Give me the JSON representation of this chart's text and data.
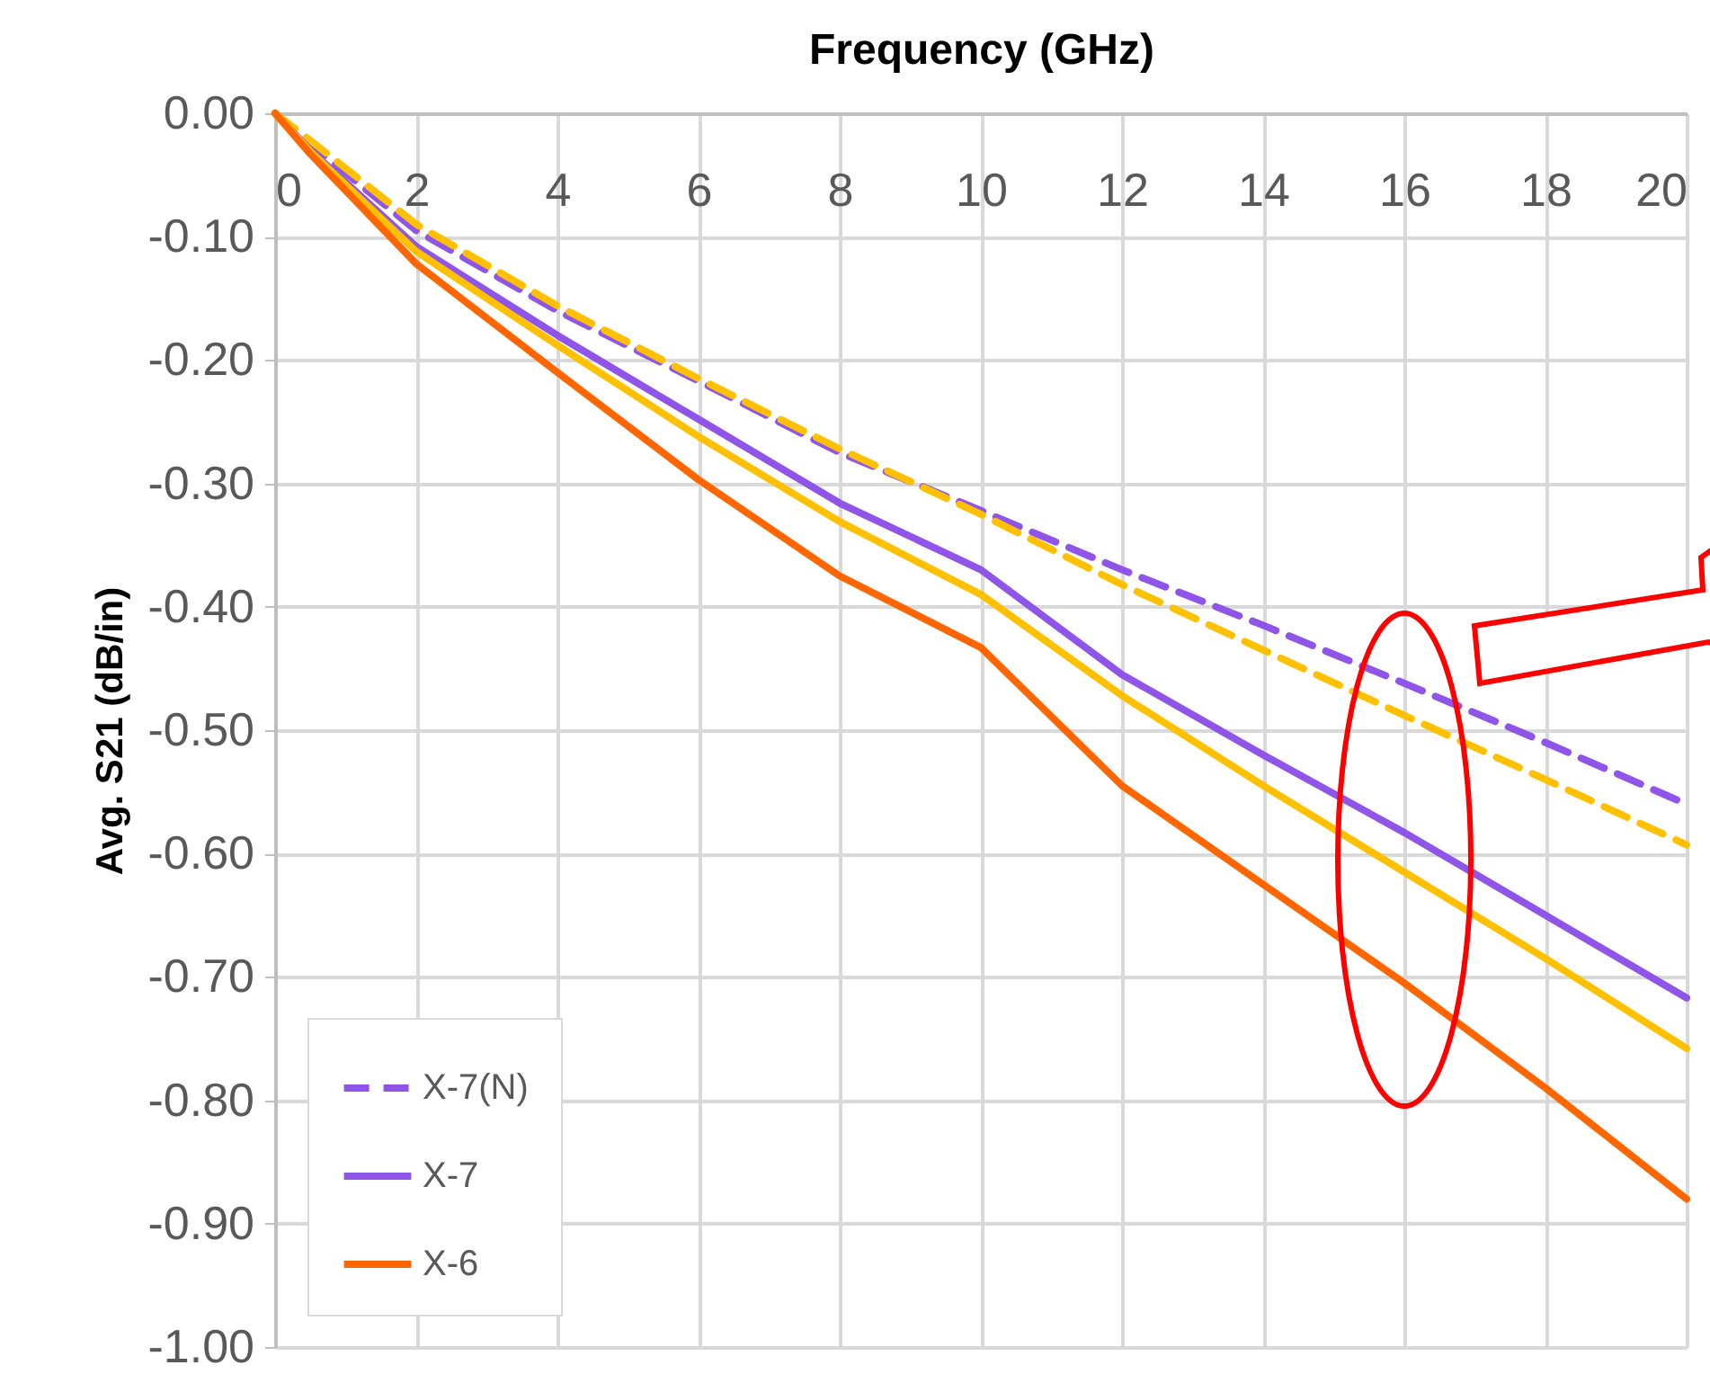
{
  "chart_data": {
    "type": "line",
    "xlabel": "Frequency (GHz)",
    "ylabel": "Avg. S21 (dB/in)",
    "x": [
      0,
      0.5,
      2,
      4,
      6,
      8,
      10,
      12,
      14,
      16,
      18,
      20
    ],
    "series": [
      {
        "name": "X-7(N)",
        "color": "#8e55e8",
        "line_style": "dashed",
        "values": [
          0,
          -0.025,
          -0.095,
          -0.16,
          -0.217,
          -0.275,
          -0.322,
          -0.37,
          -0.415,
          -0.462,
          -0.51,
          -0.56
        ]
      },
      {
        "color": "#ffc000",
        "line_style": "dashed",
        "values": [
          0,
          -0.022,
          -0.09,
          -0.156,
          -0.215,
          -0.272,
          -0.325,
          -0.382,
          -0.435,
          -0.488,
          -0.54,
          -0.593
        ]
      },
      {
        "name": "X-7",
        "color": "#8e55e8",
        "line_style": "solid",
        "values": [
          0,
          -0.03,
          -0.108,
          -0.18,
          -0.248,
          -0.316,
          -0.37,
          -0.455,
          -0.52,
          -0.583,
          -0.65,
          -0.717
        ]
      },
      {
        "color": "#ffc000",
        "line_style": "solid",
        "values": [
          0,
          -0.031,
          -0.112,
          -0.188,
          -0.262,
          -0.331,
          -0.39,
          -0.472,
          -0.545,
          -0.615,
          -0.685,
          -0.758
        ]
      },
      {
        "name": "X-6",
        "color": "#ff6600",
        "line_style": "solid",
        "values": [
          0,
          -0.033,
          -0.122,
          -0.21,
          -0.297,
          -0.375,
          -0.433,
          -0.545,
          -0.625,
          -0.705,
          -0.79,
          -0.88
        ]
      }
    ],
    "xlim": [
      0,
      20
    ],
    "xticks": [
      0,
      2,
      4,
      6,
      8,
      10,
      12,
      14,
      16,
      18,
      20
    ],
    "ylim": [
      -1,
      0
    ],
    "yticks": [
      {
        "value": 0,
        "label": "0.00"
      },
      {
        "value": -0.1,
        "label": "-0.10"
      },
      {
        "value": -0.2,
        "label": "-0.20"
      },
      {
        "value": -0.3,
        "label": "-0.30"
      },
      {
        "value": -0.4,
        "label": "-0.40"
      },
      {
        "value": -0.5,
        "label": "-0.50"
      },
      {
        "value": -0.6,
        "label": "-0.60"
      },
      {
        "value": -0.7,
        "label": "-0.70"
      },
      {
        "value": -0.8,
        "label": "-0.80"
      },
      {
        "value": -0.9,
        "label": "-0.90"
      },
      {
        "value": -1,
        "label": "-1.00"
      }
    ],
    "grid": true,
    "legend": "bottom left",
    "marker": "none"
  }
}
